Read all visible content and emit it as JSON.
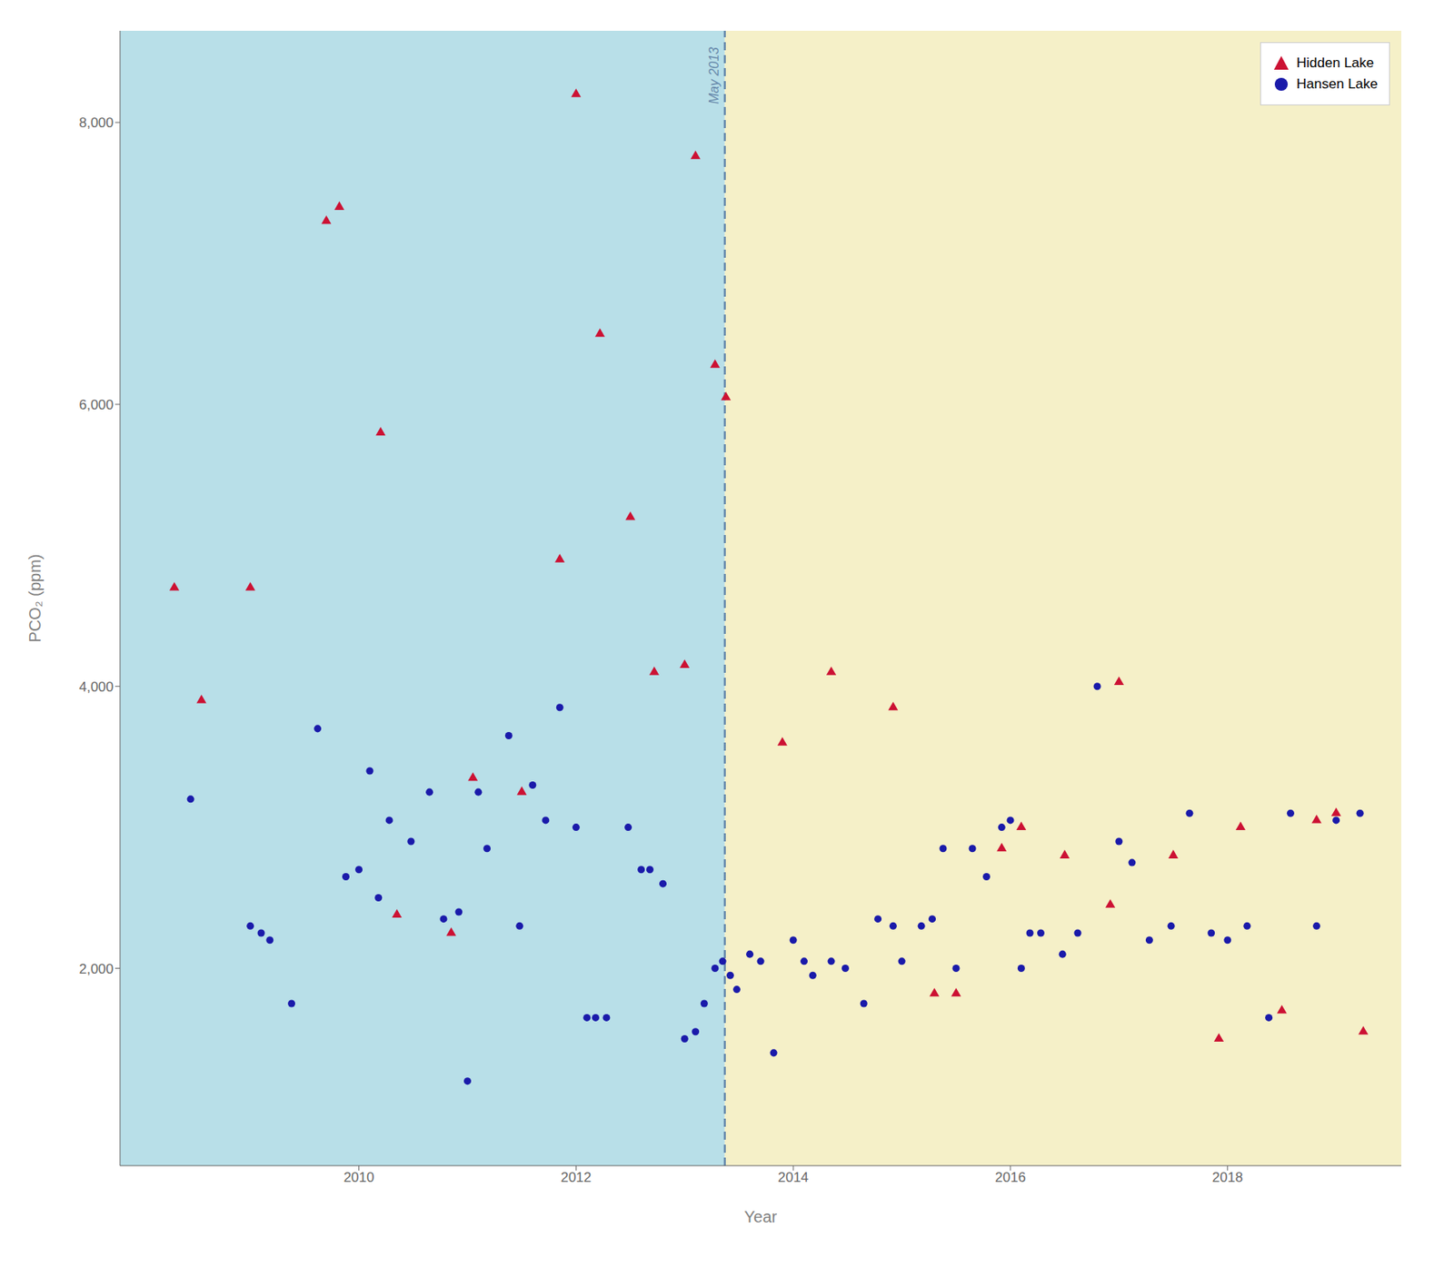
{
  "chart_data": {
    "type": "scatter",
    "xlabel": "Year",
    "ylabel": "PCO₂ (ppm)",
    "xlim": [
      2007.8,
      2019.6
    ],
    "ylim": [
      600,
      8650
    ],
    "xticks": [
      2010,
      2012,
      2014,
      2016,
      2018
    ],
    "yticks": [
      {
        "value": 2000,
        "label": "2,000"
      },
      {
        "value": 4000,
        "label": "4,000"
      },
      {
        "value": 6000,
        "label": "6,000"
      },
      {
        "value": 8000,
        "label": "8,000"
      }
    ],
    "grid": false,
    "legend": "upper right",
    "series": [
      {
        "name": "Hidden Lake",
        "color": "#cc1133",
        "marker": "triangle",
        "x": [
          2008.3,
          2008.55,
          2009.0,
          2009.7,
          2009.82,
          2010.2,
          2010.35,
          2010.85,
          2011.05,
          2011.5,
          2011.85,
          2012.0,
          2012.22,
          2012.5,
          2012.72,
          2013.0,
          2013.1,
          2013.28,
          2013.38,
          2013.9,
          2014.35,
          2014.92,
          2015.3,
          2015.5,
          2015.92,
          2016.1,
          2016.5,
          2016.92,
          2017.0,
          2017.5,
          2017.92,
          2018.12,
          2018.5,
          2018.82,
          2019.0,
          2019.25
        ],
        "values": [
          4700,
          3900,
          4700,
          7300,
          7400,
          5800,
          2380,
          2250,
          3350,
          3250,
          4900,
          8200,
          6500,
          5200,
          4100,
          4150,
          7760,
          6280,
          6050,
          3600,
          4100,
          3850,
          1820,
          1820,
          2850,
          3000,
          2800,
          2450,
          4030,
          2800,
          1500,
          3000,
          1700,
          3050,
          3100,
          1550
        ]
      },
      {
        "name": "Hansen Lake",
        "color": "#1a1aaa",
        "marker": "circle",
        "x": [
          2008.45,
          2009.0,
          2009.1,
          2009.18,
          2009.38,
          2009.62,
          2009.88,
          2010.0,
          2010.1,
          2010.18,
          2010.28,
          2010.48,
          2010.65,
          2010.78,
          2010.92,
          2011.0,
          2011.1,
          2011.18,
          2011.38,
          2011.48,
          2011.6,
          2011.72,
          2011.85,
          2012.0,
          2012.1,
          2012.18,
          2012.28,
          2012.48,
          2012.6,
          2012.68,
          2012.8,
          2013.0,
          2013.1,
          2013.18,
          2013.28,
          2013.35,
          2013.42,
          2013.48,
          2013.6,
          2013.7,
          2013.82,
          2014.0,
          2014.1,
          2014.18,
          2014.35,
          2014.48,
          2014.65,
          2014.78,
          2014.92,
          2015.0,
          2015.18,
          2015.28,
          2015.38,
          2015.5,
          2015.65,
          2015.78,
          2015.92,
          2016.0,
          2016.1,
          2016.18,
          2016.28,
          2016.48,
          2016.62,
          2016.8,
          2017.0,
          2017.12,
          2017.28,
          2017.48,
          2017.65,
          2017.85,
          2018.0,
          2018.18,
          2018.38,
          2018.58,
          2018.82,
          2019.0,
          2019.22
        ],
        "values": [
          3200,
          2300,
          2250,
          2200,
          1750,
          3700,
          2650,
          2700,
          3400,
          2500,
          3050,
          2900,
          3250,
          2350,
          2400,
          1200,
          3250,
          2850,
          3650,
          2300,
          3300,
          3050,
          3850,
          3000,
          1650,
          1650,
          1650,
          3000,
          2700,
          2700,
          2600,
          1500,
          1550,
          1750,
          2000,
          2050,
          1950,
          1850,
          2100,
          2050,
          1400,
          2200,
          2050,
          1950,
          2050,
          2000,
          1750,
          2350,
          2300,
          2050,
          2300,
          2350,
          2850,
          2000,
          2850,
          2650,
          3000,
          3050,
          2000,
          2250,
          2250,
          2100,
          2250,
          4000,
          2900,
          2750,
          2200,
          2300,
          3100,
          2250,
          2200,
          2300,
          1650,
          3100,
          2300,
          3050,
          3100
        ]
      }
    ],
    "regions": [
      {
        "from": 2007.8,
        "to": 2013.37,
        "color": "#b8dfe8"
      },
      {
        "from": 2013.37,
        "to": 2019.6,
        "color": "#f5f0c8"
      }
    ],
    "annotations": [
      {
        "type": "vline",
        "x": 2013.37,
        "label": "May 2013",
        "color": "#6688aa",
        "line_style": "dashed"
      }
    ]
  }
}
